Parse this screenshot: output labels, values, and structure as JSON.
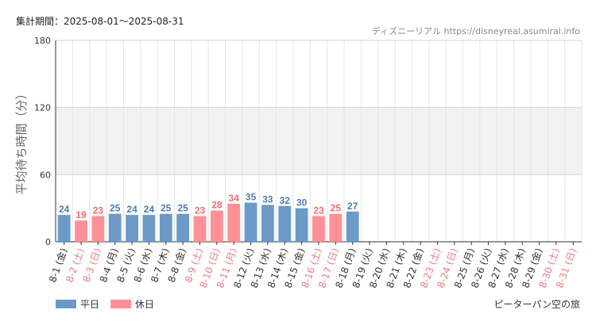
{
  "header": {
    "period": "集計期間：2025-08-01〜2025-08-31",
    "source": "ディズニーリアル https://disneyreal.asumirai.info"
  },
  "footer": {
    "attraction": "ピーターパン空の旅"
  },
  "legend": [
    {
      "label": "平日",
      "color": "#6b9ac9"
    },
    {
      "label": "休日",
      "color": "#ff9196"
    }
  ],
  "chart_data": {
    "type": "bar",
    "ylabel": "平均待ち時間（分）",
    "ylim": [
      0,
      180
    ],
    "yticks": [
      0,
      60,
      120,
      180
    ],
    "grid": true,
    "legend_position": "bottom-left",
    "series": [
      {
        "name": "平日",
        "color": "#6b9ac9",
        "label_color": "#4b7db0"
      },
      {
        "name": "休日",
        "color": "#ff9196",
        "label_color": "#f06b73"
      }
    ],
    "categories": [
      "8-1 (金)",
      "8-2 (土)",
      "8-3 (日)",
      "8-4 (月)",
      "8-5 (火)",
      "8-6 (水)",
      "8-7 (木)",
      "8-8 (金)",
      "8-9 (土)",
      "8-10 (日)",
      "8-11 (月)",
      "8-12 (火)",
      "8-13 (水)",
      "8-14 (木)",
      "8-15 (金)",
      "8-16 (土)",
      "8-17 (日)",
      "8-18 (月)",
      "8-19 (火)",
      "8-20 (水)",
      "8-21 (木)",
      "8-22 (金)",
      "8-23 (土)",
      "8-24 (日)",
      "8-25 (月)",
      "8-26 (火)",
      "8-27 (水)",
      "8-28 (木)",
      "8-29 (金)",
      "8-30 (土)",
      "8-31 (日)"
    ],
    "values": [
      24,
      19,
      23,
      25,
      24,
      24,
      25,
      25,
      23,
      28,
      34,
      35,
      33,
      32,
      30,
      23,
      25,
      27,
      null,
      null,
      null,
      null,
      null,
      null,
      null,
      null,
      null,
      null,
      null,
      null,
      null
    ],
    "day_type": [
      "平日",
      "休日",
      "休日",
      "平日",
      "平日",
      "平日",
      "平日",
      "平日",
      "休日",
      "休日",
      "休日",
      "平日",
      "平日",
      "平日",
      "平日",
      "休日",
      "休日",
      "平日",
      "平日",
      "平日",
      "平日",
      "平日",
      "休日",
      "休日",
      "平日",
      "平日",
      "平日",
      "平日",
      "平日",
      "休日",
      "休日"
    ]
  }
}
